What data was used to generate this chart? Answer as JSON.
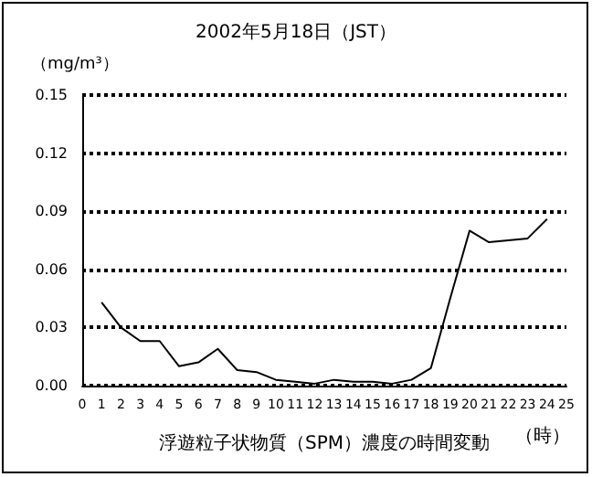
{
  "chart_data": {
    "type": "line",
    "title": "2002年5月18日（JST）",
    "ylabel": "（mg/m³）",
    "xlabel": "浮遊粒子状物質（SPM）濃度の時間変動",
    "annotations": [
      "（時）"
    ],
    "x": [
      1,
      2,
      3,
      4,
      5,
      6,
      7,
      8,
      9,
      10,
      11,
      12,
      13,
      14,
      15,
      16,
      17,
      18,
      19,
      20,
      21,
      22,
      23,
      24
    ],
    "series": [
      {
        "color": "#000000",
        "values": [
          0.043,
          0.03,
          0.023,
          0.023,
          0.01,
          0.012,
          0.019,
          0.008,
          0.007,
          0.003,
          0.002,
          0.001,
          0.003,
          0.002,
          0.002,
          0.001,
          0.003,
          0.009,
          0.045,
          0.08,
          0.074,
          0.075,
          0.076,
          0.086
        ]
      }
    ],
    "xlim": [
      0,
      25
    ],
    "xticks": [
      0,
      1,
      2,
      3,
      4,
      5,
      6,
      7,
      8,
      9,
      10,
      11,
      12,
      13,
      14,
      15,
      16,
      17,
      18,
      19,
      20,
      21,
      22,
      23,
      24,
      25
    ],
    "ylim": [
      0,
      0.15
    ],
    "yticks": [
      {
        "value": 0,
        "label": "0.00"
      },
      0.03,
      0.06,
      {
        "value": 0.09,
        "label": "0.09"
      },
      {
        "value": 0.12,
        "label": "0.12"
      },
      0.15
    ],
    "grid": "y",
    "marker": "none",
    "line_style": "solid"
  }
}
